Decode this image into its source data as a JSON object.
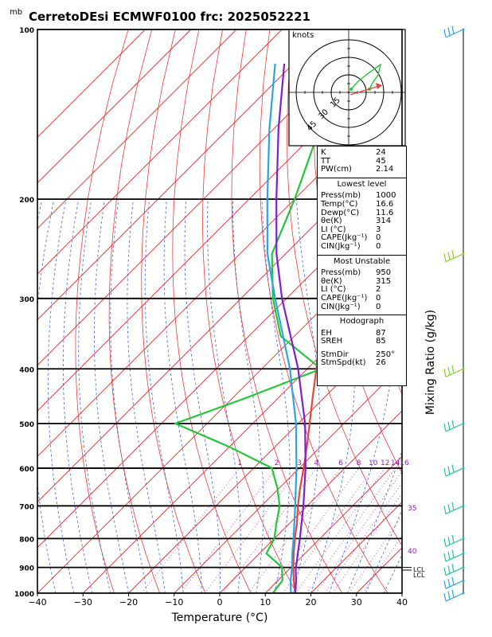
{
  "chart_data": {
    "type": "line",
    "title": "CerretoDEsi ECMWF0100  frc: 2025052221",
    "pressure_unit": "mb",
    "xlabel": "Temperature (°C)",
    "right_label": "Mixing Ratio (g/kg)",
    "xlim": [
      -40,
      40
    ],
    "plim": [
      1000,
      100
    ],
    "pressure_ticks": [
      100,
      200,
      300,
      400,
      500,
      600,
      700,
      800,
      900,
      1000
    ],
    "temperature_ticks": [
      -40,
      -30,
      -20,
      -10,
      0,
      10,
      20,
      30,
      40
    ],
    "mixing_ratio_labels": [
      "1",
      "2",
      "3",
      "4",
      "6",
      "8",
      "10",
      "12",
      "14",
      "16",
      "18",
      "20",
      "25",
      "30"
    ],
    "isotherm_side_labels": [
      "35",
      "40"
    ],
    "lcl_labels": [
      "LCL",
      "LCL"
    ],
    "series": [
      {
        "name": "temperature",
        "color": "#e8443a",
        "points": [
          [
            1000,
            16.6
          ],
          [
            975,
            15
          ],
          [
            950,
            13.5
          ],
          [
            925,
            12
          ],
          [
            900,
            10.5
          ],
          [
            850,
            7.5
          ],
          [
            800,
            4.5
          ],
          [
            750,
            1.5
          ],
          [
            700,
            -2
          ],
          [
            650,
            -5.5
          ],
          [
            600,
            -9
          ],
          [
            550,
            -13
          ],
          [
            500,
            -17.5
          ],
          [
            450,
            -22.5
          ],
          [
            400,
            -28
          ],
          [
            350,
            -34.5
          ],
          [
            300,
            -42
          ],
          [
            250,
            -51
          ],
          [
            220,
            -50
          ],
          [
            200,
            -47
          ],
          [
            175,
            -44
          ],
          [
            150,
            -40
          ],
          [
            125,
            -35
          ],
          [
            100,
            -30
          ]
        ]
      },
      {
        "name": "dewpoint",
        "color": "#22c63a",
        "points": [
          [
            1000,
            11.6
          ],
          [
            950,
            11
          ],
          [
            900,
            8
          ],
          [
            850,
            1.5
          ],
          [
            800,
            0
          ],
          [
            750,
            -3
          ],
          [
            700,
            -6
          ],
          [
            650,
            -10.5
          ],
          [
            600,
            -16
          ],
          [
            550,
            -30
          ],
          [
            500,
            -47
          ],
          [
            450,
            -37
          ],
          [
            400,
            -27
          ],
          [
            350,
            -43
          ],
          [
            300,
            -53
          ],
          [
            250,
            -63
          ],
          [
            200,
            -70
          ],
          [
            150,
            -80
          ],
          [
            100,
            -92
          ]
        ]
      },
      {
        "name": "parcel",
        "color": "#7b1fd1",
        "points": [
          [
            1000,
            16.6
          ],
          [
            950,
            14
          ],
          [
            910,
            11.6
          ],
          [
            850,
            8.4
          ],
          [
            800,
            5.6
          ],
          [
            700,
            -0.8
          ],
          [
            600,
            -8.6
          ],
          [
            500,
            -18.5
          ],
          [
            400,
            -32
          ],
          [
            300,
            -51
          ],
          [
            250,
            -62
          ],
          [
            200,
            -74
          ],
          [
            150,
            -89
          ],
          [
            115,
            -102
          ]
        ]
      },
      {
        "name": "environment_virtual",
        "color": "#2aa5e0",
        "points": [
          [
            1000,
            15.6
          ],
          [
            950,
            12.8
          ],
          [
            900,
            10.2
          ],
          [
            850,
            7.2
          ],
          [
            800,
            4.2
          ],
          [
            700,
            -2.6
          ],
          [
            600,
            -10.6
          ],
          [
            500,
            -20.5
          ],
          [
            400,
            -33.8
          ],
          [
            300,
            -52.5
          ],
          [
            250,
            -64
          ],
          [
            200,
            -76
          ],
          [
            150,
            -91
          ],
          [
            115,
            -104
          ]
        ]
      }
    ],
    "hodograph": {
      "unit_label": "knots",
      "ring_labels": [
        "15",
        "30",
        "45"
      ],
      "storm_motion": {
        "direction_deg": 250,
        "speed_kt": 26
      }
    },
    "wind_barbs_right": [
      {
        "pressure": 100,
        "color": "#2aa5e0"
      },
      {
        "pressure": 250,
        "color": "#7fd320"
      },
      {
        "pressure": 400,
        "color": "#7fd320"
      },
      {
        "pressure": 500,
        "color": "#22c3a0"
      },
      {
        "pressure": 600,
        "color": "#22c3a0"
      },
      {
        "pressure": 700,
        "color": "#22c3a0"
      },
      {
        "pressure": 800,
        "color": "#22c3a0"
      },
      {
        "pressure": 850,
        "color": "#22c3a0"
      },
      {
        "pressure": 900,
        "color": "#22c3a0"
      },
      {
        "pressure": 950,
        "color": "#2aa5e0"
      },
      {
        "pressure": 1000,
        "color": "#2aa5e0"
      }
    ],
    "grid": true
  },
  "indices": {
    "k_label": "K",
    "k_value": "24",
    "tt_label": "TT",
    "tt_value": "45",
    "pw_label": "PW(cm)",
    "pw_value": "2.14"
  },
  "lowest_level": {
    "header": "Lowest level",
    "rows": [
      {
        "label": "Press(mb)",
        "value": "1000"
      },
      {
        "label": "Temp(°C)",
        "value": "16.6"
      },
      {
        "label": "Dewp(°C)",
        "value": "11.6"
      },
      {
        "label": "θe(K)",
        "value": "314"
      },
      {
        "label": "LI (°C)",
        "value": "3"
      },
      {
        "label": "CAPE(Jkg⁻¹)",
        "value": "0"
      },
      {
        "label": "CIN(Jkg⁻¹)",
        "value": "0"
      }
    ]
  },
  "most_unstable": {
    "header": "Most Unstable",
    "rows": [
      {
        "label": "Press(mb)",
        "value": "950"
      },
      {
        "label": "θe(K)",
        "value": "315"
      },
      {
        "label": "LI (°C)",
        "value": "2"
      },
      {
        "label": "CAPE(Jkg⁻¹)",
        "value": "0"
      },
      {
        "label": "CIN(Jkg⁻¹)",
        "value": "0"
      }
    ]
  },
  "hodograph_panel": {
    "header": "Hodograph",
    "rows": [
      {
        "label": "EH",
        "value": "87"
      },
      {
        "label": "SREH",
        "value": "85"
      },
      {
        "label": "StmDir",
        "value": "250°"
      },
      {
        "label": "StmSpd(kt)",
        "value": "26"
      }
    ]
  }
}
